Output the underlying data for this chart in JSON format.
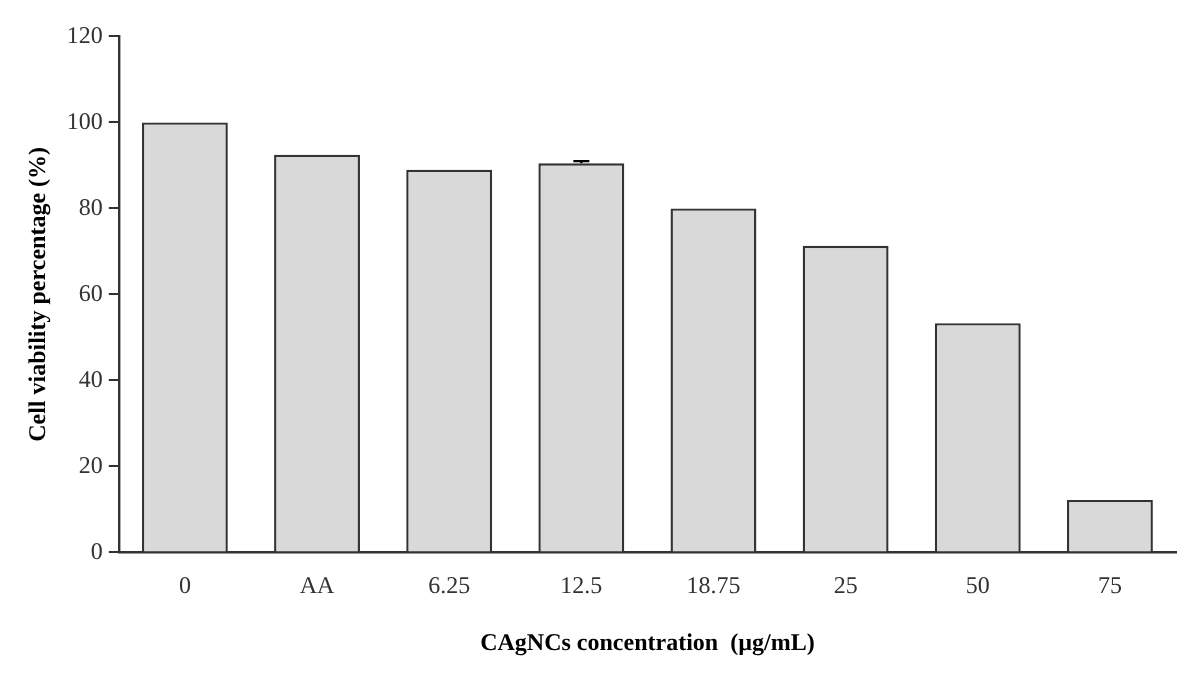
{
  "chart_data": {
    "type": "bar",
    "xlabel": "CAgNCs concentration  (µg/mL)",
    "ylabel": "Cell viability percentage (%)",
    "categories": [
      "0",
      "AA",
      "6.25",
      "12.5",
      "18.75",
      "25",
      "50",
      "75"
    ],
    "values": [
      100,
      92.5,
      89,
      90.5,
      80,
      71.3,
      53.3,
      12.2
    ],
    "errors": [
      null,
      null,
      null,
      0.5,
      null,
      null,
      null,
      null
    ],
    "color": "#d9d9d9",
    "ylim": [
      0,
      120
    ],
    "yticks": [
      0,
      20,
      40,
      60,
      80,
      100,
      120
    ],
    "grid": false,
    "legend": false
  }
}
